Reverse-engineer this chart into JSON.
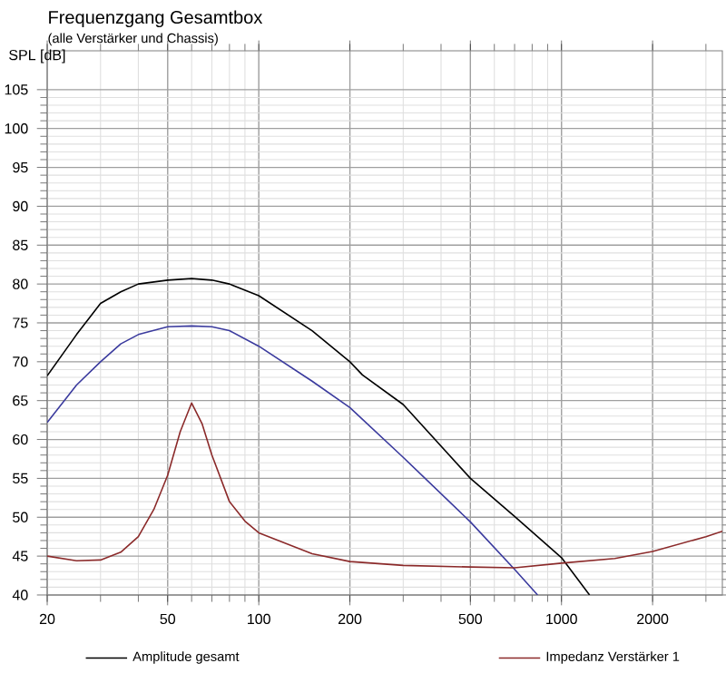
{
  "chart_data": {
    "type": "line",
    "title": "Frequenzgang Gesamtbox",
    "subtitle": "(alle Verstärker und Chassis)",
    "ylabel": "SPL [dB]",
    "log": "x",
    "grid": true,
    "legend": "bottom",
    "marker": "none",
    "line_style": "solid",
    "xlim": [
      20,
      3400
    ],
    "ylim": [
      40,
      110
    ],
    "xticks": [
      20,
      50,
      100,
      200,
      500,
      1000,
      2000
    ],
    "yticks": [
      40,
      45,
      50,
      55,
      60,
      65,
      70,
      75,
      80,
      85,
      90,
      95,
      100,
      105
    ],
    "series": [
      {
        "name": "Amplitude gesamt",
        "color": "#000000",
        "x": [
          20,
          25,
          28,
          30,
          35,
          40,
          50,
          60,
          70,
          80,
          100,
          150,
          200,
          220,
          300,
          500,
          700,
          1000,
          1238
        ],
        "values": [
          68.2,
          73.5,
          76,
          77.5,
          79,
          80,
          80.5,
          80.7,
          80.5,
          80,
          78.5,
          74,
          70,
          68.3,
          64.5,
          55,
          50.1,
          44.8,
          40
        ]
      },
      {
        "color": "#3b3b9e",
        "x": [
          20,
          25,
          30,
          35,
          40,
          50,
          60,
          70,
          80,
          100,
          150,
          200,
          300,
          500,
          700,
          834
        ],
        "values": [
          62.2,
          67,
          70,
          72.3,
          73.5,
          74.5,
          74.6,
          74.5,
          74,
          72,
          67.5,
          64.1,
          57.7,
          49.4,
          43.3,
          40
        ]
      },
      {
        "name": "Impedanz Verstärker 1",
        "color": "#8b2a2a",
        "x": [
          20,
          25,
          30,
          35,
          40,
          45,
          50,
          55,
          60,
          65,
          70,
          80,
          90,
          100,
          150,
          200,
          300,
          500,
          700,
          1000,
          1500,
          2000,
          3000,
          3400
        ],
        "values": [
          45,
          44.4,
          44.5,
          45.5,
          47.5,
          51,
          55.4,
          61,
          64.7,
          62,
          58,
          52,
          49.5,
          48,
          45.3,
          44.3,
          43.8,
          43.6,
          43.5,
          44.1,
          44.7,
          45.6,
          47.5,
          48.2
        ]
      }
    ]
  }
}
